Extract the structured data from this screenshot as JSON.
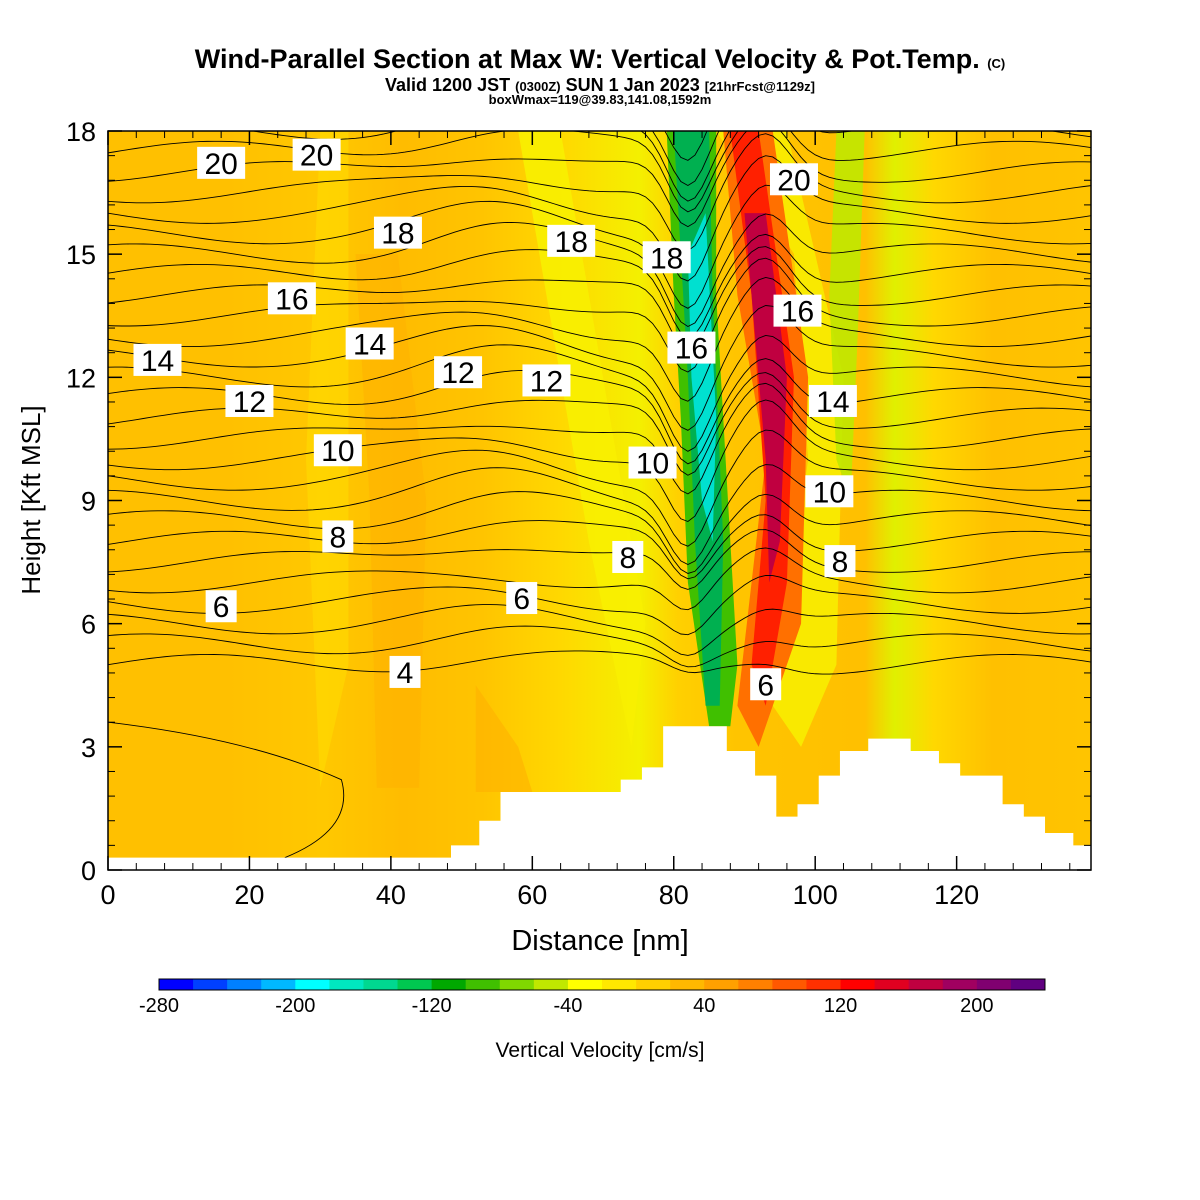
{
  "header": {
    "title": "Wind-Parallel Section at Max W: Vertical Velocity & Pot.Temp.",
    "title_mark": "(C)",
    "valid_prefix": "Valid 1200 JST",
    "valid_utc": "(0300Z)",
    "valid_date": "SUN 1 Jan 2023",
    "forecast_info": "[21hrFcst@1129z]",
    "box_info": "boxWmax=119@39.83,141.08,1592m"
  },
  "colorbar": {
    "label": "Vertical Velocity [cm/s]",
    "ticks": [
      "-280",
      "-200",
      "-120",
      "-40",
      "40",
      "120",
      "200"
    ],
    "colors": [
      "#0000ff",
      "#0040ff",
      "#0080ff",
      "#00b8ff",
      "#00ffff",
      "#00e8c0",
      "#00d890",
      "#00c850",
      "#00a800",
      "#40c000",
      "#80d800",
      "#c0e800",
      "#ffff00",
      "#ffe800",
      "#ffd000",
      "#ffb800",
      "#ffa000",
      "#ff8000",
      "#ff5800",
      "#ff3000",
      "#ff0000",
      "#e00020",
      "#c00040",
      "#a00060",
      "#800070",
      "#600080"
    ]
  },
  "chart_data": {
    "type": "contour",
    "xlabel": "Distance [nm]",
    "ylabel": "Height [Kft MSL]",
    "xlim": [
      0,
      139
    ],
    "ylim": [
      0,
      18
    ],
    "xticks": [
      "0",
      "20",
      "40",
      "60",
      "80",
      "100",
      "120"
    ],
    "yticks": [
      "0",
      "3",
      "6",
      "9",
      "12",
      "15",
      "18"
    ],
    "filled_field": "Vertical Velocity [cm/s]",
    "field_features": [
      {
        "feature": "downdraft",
        "x_center": 84,
        "value_min": -200
      },
      {
        "feature": "updraft",
        "x_center": 92,
        "value_max": 200
      }
    ],
    "terrain": [
      [
        0,
        0.3
      ],
      [
        48,
        0.3
      ],
      [
        48.5,
        0.6
      ],
      [
        52,
        0.6
      ],
      [
        52.5,
        1.2
      ],
      [
        55,
        1.2
      ],
      [
        55.5,
        1.9
      ],
      [
        72,
        1.9
      ],
      [
        72.5,
        2.2
      ],
      [
        75,
        2.2
      ],
      [
        75.5,
        2.5
      ],
      [
        78,
        2.5
      ],
      [
        78.5,
        3.5
      ],
      [
        87,
        3.5
      ],
      [
        87.5,
        2.9
      ],
      [
        91,
        2.9
      ],
      [
        91.5,
        2.3
      ],
      [
        94,
        2.3
      ],
      [
        94.5,
        1.3
      ],
      [
        97,
        1.3
      ],
      [
        97.5,
        1.6
      ],
      [
        100,
        1.6
      ],
      [
        100.5,
        2.3
      ],
      [
        103,
        2.3
      ],
      [
        103.5,
        2.9
      ],
      [
        107,
        2.9
      ],
      [
        107.5,
        3.2
      ],
      [
        113,
        3.2
      ],
      [
        113.5,
        2.9
      ],
      [
        117,
        2.9
      ],
      [
        117.5,
        2.6
      ],
      [
        120,
        2.6
      ],
      [
        120.5,
        2.3
      ],
      [
        126,
        2.3
      ],
      [
        126.5,
        1.6
      ],
      [
        129,
        1.6
      ],
      [
        129.5,
        1.3
      ],
      [
        132,
        1.3
      ],
      [
        132.5,
        0.9
      ],
      [
        136,
        0.9
      ],
      [
        136.5,
        0.6
      ],
      [
        139,
        0.6
      ]
    ],
    "isotherm_labels": [
      {
        "text": "20",
        "x": 16,
        "y": 17.2
      },
      {
        "text": "20",
        "x": 29.5,
        "y": 17.4
      },
      {
        "text": "20",
        "x": 97,
        "y": 16.8
      },
      {
        "text": "18",
        "x": 41,
        "y": 15.5
      },
      {
        "text": "18",
        "x": 65.5,
        "y": 15.3
      },
      {
        "text": "18",
        "x": 79,
        "y": 14.9
      },
      {
        "text": "16",
        "x": 26,
        "y": 13.9
      },
      {
        "text": "16",
        "x": 82.5,
        "y": 12.7
      },
      {
        "text": "16",
        "x": 97.5,
        "y": 13.6
      },
      {
        "text": "14",
        "x": 7,
        "y": 12.4
      },
      {
        "text": "14",
        "x": 37,
        "y": 12.8
      },
      {
        "text": "14",
        "x": 102.5,
        "y": 11.4
      },
      {
        "text": "12",
        "x": 20,
        "y": 11.4
      },
      {
        "text": "12",
        "x": 49.5,
        "y": 12.1
      },
      {
        "text": "12",
        "x": 62,
        "y": 11.9
      },
      {
        "text": "10",
        "x": 32.5,
        "y": 10.2
      },
      {
        "text": "10",
        "x": 77,
        "y": 9.9
      },
      {
        "text": "10",
        "x": 102,
        "y": 9.2
      },
      {
        "text": "8",
        "x": 32.5,
        "y": 8.1
      },
      {
        "text": "8",
        "x": 73.5,
        "y": 7.6
      },
      {
        "text": "8",
        "x": 103.5,
        "y": 7.5
      },
      {
        "text": "6",
        "x": 16,
        "y": 6.4
      },
      {
        "text": "6",
        "x": 58.5,
        "y": 6.6
      },
      {
        "text": "6",
        "x": 93,
        "y": 4.5
      },
      {
        "text": "4",
        "x": 42,
        "y": 4.8
      }
    ]
  }
}
